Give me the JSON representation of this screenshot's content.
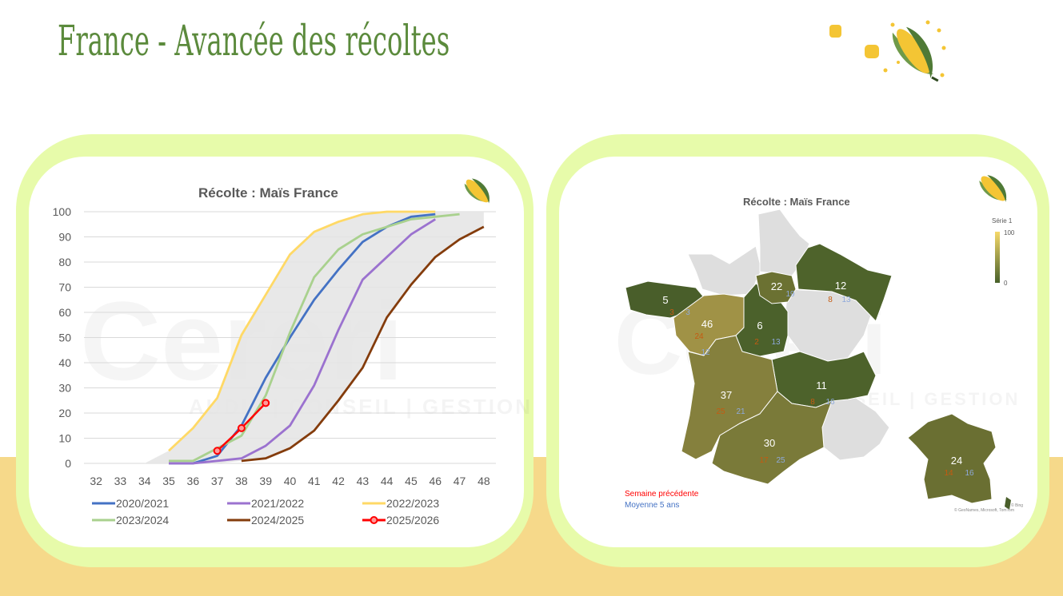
{
  "page": {
    "title": "France - Avancée des récoltes"
  },
  "colors": {
    "title_green": "#5b8a3c",
    "card_border": "#e7fbaa",
    "band": "#f6d98a"
  },
  "decor": {
    "corn_icon": "corn-cob-icon"
  },
  "chart_data": [
    {
      "type": "line",
      "title": "Récolte : Maïs France",
      "xlabel": "",
      "ylabel": "",
      "x": [
        32,
        33,
        34,
        35,
        36,
        37,
        38,
        39,
        40,
        41,
        42,
        43,
        44,
        45,
        46,
        47,
        48
      ],
      "ylim": [
        0,
        100
      ],
      "yticks": [
        0,
        10,
        20,
        30,
        40,
        50,
        60,
        70,
        80,
        90,
        100
      ],
      "grid": true,
      "legend_position": "bottom",
      "watermark": {
        "brand": "Cereri",
        "tagline": "AUDIT | CONSEIL | GESTION"
      },
      "band": {
        "description": "min-max range",
        "color": "#e4e4e4",
        "x": [
          34,
          35,
          36,
          37,
          38,
          39,
          40,
          41,
          42,
          43,
          44,
          45,
          46,
          47,
          48
        ],
        "upper": [
          0,
          5,
          14,
          26,
          51,
          67,
          83,
          92,
          96,
          99,
          100,
          100,
          100,
          100,
          100
        ],
        "lower": [
          0,
          0,
          0,
          0,
          1,
          2,
          6,
          13,
          25,
          38,
          58,
          71,
          82,
          89,
          94
        ]
      },
      "series": [
        {
          "name": "2020/2021",
          "color": "#4472c4",
          "x": [
            35,
            36,
            37,
            38,
            39,
            40,
            41,
            42,
            43,
            44,
            45,
            46
          ],
          "values": [
            0,
            0,
            3,
            15,
            34,
            50,
            65,
            77,
            88,
            94,
            98,
            99
          ]
        },
        {
          "name": "2021/2022",
          "color": "#9b72cf",
          "x": [
            35,
            36,
            37,
            38,
            39,
            40,
            41,
            42,
            43,
            44,
            45,
            46
          ],
          "values": [
            0,
            0,
            1,
            2,
            7,
            15,
            31,
            53,
            73,
            82,
            91,
            97
          ]
        },
        {
          "name": "2022/2023",
          "color": "#ffd966",
          "x": [
            35,
            36,
            37,
            38,
            39,
            40,
            41,
            42,
            43,
            44,
            45,
            46
          ],
          "values": [
            5,
            14,
            26,
            51,
            67,
            83,
            92,
            96,
            99,
            100,
            100,
            100
          ]
        },
        {
          "name": "2023/2024",
          "color": "#a9d18e",
          "x": [
            35,
            36,
            37,
            38,
            39,
            40,
            41,
            42,
            43,
            44,
            45,
            46,
            47
          ],
          "values": [
            1,
            1,
            6,
            11,
            27,
            52,
            74,
            85,
            91,
            94,
            97,
            98,
            99
          ]
        },
        {
          "name": "2024/2025",
          "color": "#843c0c",
          "x": [
            38,
            39,
            40,
            41,
            42,
            43,
            44,
            45,
            46,
            47,
            48
          ],
          "values": [
            1,
            2,
            6,
            13,
            25,
            38,
            58,
            71,
            82,
            89,
            94
          ]
        },
        {
          "name": "2025/2026",
          "color": "#ff0000",
          "marker": "circle",
          "x": [
            37,
            38,
            39
          ],
          "values": [
            5,
            14,
            24
          ]
        }
      ]
    },
    {
      "type": "map",
      "title": "Récolte : Maïs France",
      "legend": {
        "title": "Série 1",
        "max": "100",
        "min": "0"
      },
      "color_scale": [
        "#47602a",
        "#f6d96a"
      ],
      "regions": [
        {
          "name": "Bretagne",
          "value": 5,
          "previous_week": 3,
          "avg_5y": 3
        },
        {
          "name": "Pays de la Loire",
          "value": 46,
          "previous_week": 24,
          "avg_5y": 12
        },
        {
          "name": "Centre-Val de Loire",
          "value": 6,
          "previous_week": 2,
          "avg_5y": 13
        },
        {
          "name": "Île-de-France",
          "value": 22,
          "previous_week": "",
          "avg_5y": 19
        },
        {
          "name": "Grand Est",
          "value": 12,
          "previous_week": 8,
          "avg_5y": 13
        },
        {
          "name": "Auvergne-Rhône-Alpes",
          "value": 11,
          "previous_week": 8,
          "avg_5y": 16
        },
        {
          "name": "Nouvelle-Aquitaine",
          "value": 37,
          "previous_week": 25,
          "avg_5y": 21
        },
        {
          "name": "Occitanie",
          "value": 30,
          "previous_week": 17,
          "avg_5y": 25
        },
        {
          "name": "France",
          "value": 24,
          "previous_week": 14,
          "avg_5y": 16
        }
      ],
      "notes": {
        "previous_week": "Semaine précédente",
        "avg_5y": "Moyenne 5 ans"
      },
      "credits": {
        "bing": "© Bing",
        "sources": "© GeoNames, Microsoft, TomTom"
      },
      "watermark": {
        "brand": "Cereri",
        "tagline": "AUDIT | CONSEIL | GESTION"
      }
    }
  ]
}
